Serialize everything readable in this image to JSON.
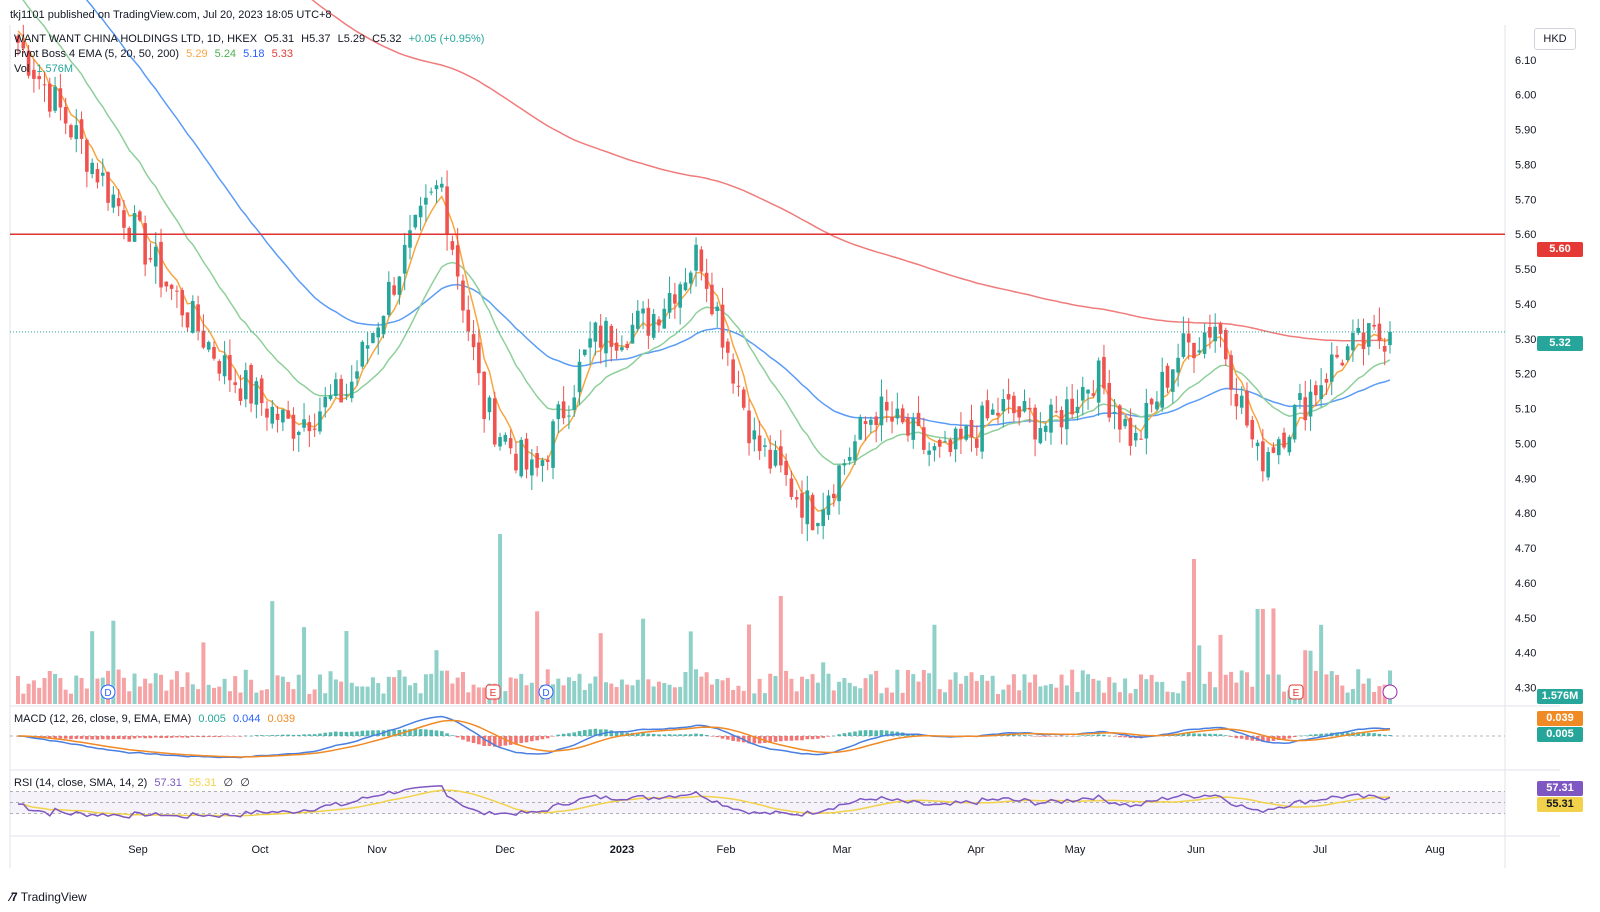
{
  "publish": {
    "text": "tkj1101 published on TradingView.com, Jul 20, 2023 18:05 UTC+8"
  },
  "legend": {
    "symbol": "WANT WANT CHINA HOLDINGS LTD, 1D, HKEX",
    "open": "O5.31",
    "high": "H5.37",
    "low": "L5.29",
    "close": "C5.32",
    "change": "+0.05 (+0.95%)",
    "ema_label": "Pivot Boss 4 EMA (5, 20, 50, 200)",
    "ema_values": [
      "5.29",
      "5.24",
      "5.18",
      "5.33"
    ],
    "vol_label": "Vol",
    "vol_value": "1.576M",
    "macd_label": "MACD (12, 26, close, 9, EMA, EMA)",
    "macd_values": [
      "0.005",
      "0.044",
      "0.039"
    ],
    "rsi_label": "RSI (14, close, SMA, 14, 2)",
    "rsi_values": [
      "57.31",
      "55.31",
      "∅",
      "∅"
    ]
  },
  "currency": "HKD",
  "colors": {
    "up": "#26a69a",
    "down": "#ef5350",
    "vol_up": "#8fd0c8",
    "vol_down": "#f5a3a5",
    "ema5": "#f7a740",
    "ema20": "#8fcf9a",
    "ema50": "#5b9cf6",
    "ema200": "#f07b7b",
    "resistance": "#e03030",
    "macd": "#4a7fe0",
    "signal": "#f08a24",
    "rsi": "#7e57c2",
    "rsi_ma": "#f2d24a",
    "price_pill": "#26a69a",
    "level_pill": "#e53935"
  },
  "price_labels": {
    "level": "5.60",
    "last": "5.32",
    "volume": "1.576M",
    "macd_signal": "0.039",
    "macd_hist": "0.005",
    "rsi": "57.31",
    "rsi_ma": "55.31"
  },
  "footer": {
    "brand": "TradingView"
  },
  "chart_data": {
    "type": "candlestick",
    "title": "WANT WANT CHINA HOLDINGS LTD, 1D, HKEX",
    "ylim": [
      4.25,
      6.2
    ],
    "y_ticks": [
      "6.10",
      "6.00",
      "5.90",
      "5.80",
      "5.70",
      "5.60",
      "5.50",
      "5.40",
      "5.30",
      "5.20",
      "5.10",
      "5.00",
      "4.90",
      "4.80",
      "4.70",
      "4.60",
      "4.50",
      "4.40",
      "4.30"
    ],
    "x_ticks": [
      "Sep",
      "Oct",
      "Nov",
      "Dec",
      "2023",
      "Feb",
      "Mar",
      "Apr",
      "May",
      "Jun",
      "Jul",
      "Aug"
    ],
    "resistance_level": 5.6,
    "last_close": 5.32,
    "event_markers": [
      {
        "label": "D",
        "month_index": 0
      },
      {
        "label": "E",
        "month_index": 3
      },
      {
        "label": "D",
        "month_index": 3
      },
      {
        "label": "E",
        "month_index": 10
      }
    ],
    "anchors": [
      {
        "month": "Aug",
        "close": 6.15
      },
      {
        "month": "Sep",
        "close": 5.45
      },
      {
        "month": "Sep",
        "close": 5.2
      },
      {
        "month": "Oct",
        "close": 5.05
      },
      {
        "month": "Oct",
        "close": 5.15
      },
      {
        "month": "Nov",
        "close": 5.5
      },
      {
        "month": "Nov",
        "close": 5.75
      },
      {
        "month": "Nov",
        "close": 5.1
      },
      {
        "month": "Dec",
        "close": 4.9
      },
      {
        "month": "Dec",
        "close": 5.3
      },
      {
        "month": "2023",
        "close": 5.35
      },
      {
        "month": "2023",
        "close": 5.55
      },
      {
        "month": "Feb",
        "close": 5.0
      },
      {
        "month": "Feb",
        "close": 4.8
      },
      {
        "month": "Mar",
        "close": 5.1
      },
      {
        "month": "Mar",
        "close": 4.95
      },
      {
        "month": "Apr",
        "close": 5.1
      },
      {
        "month": "Apr",
        "close": 5.05
      },
      {
        "month": "May",
        "close": 5.2
      },
      {
        "month": "May",
        "close": 5.0
      },
      {
        "month": "May",
        "close": 5.25
      },
      {
        "month": "Jun",
        "close": 5.35
      },
      {
        "month": "Jun",
        "close": 4.95
      },
      {
        "month": "Jun",
        "close": 5.1
      },
      {
        "month": "Jul",
        "close": 5.25
      },
      {
        "month": "Jul",
        "close": 5.32
      }
    ]
  }
}
